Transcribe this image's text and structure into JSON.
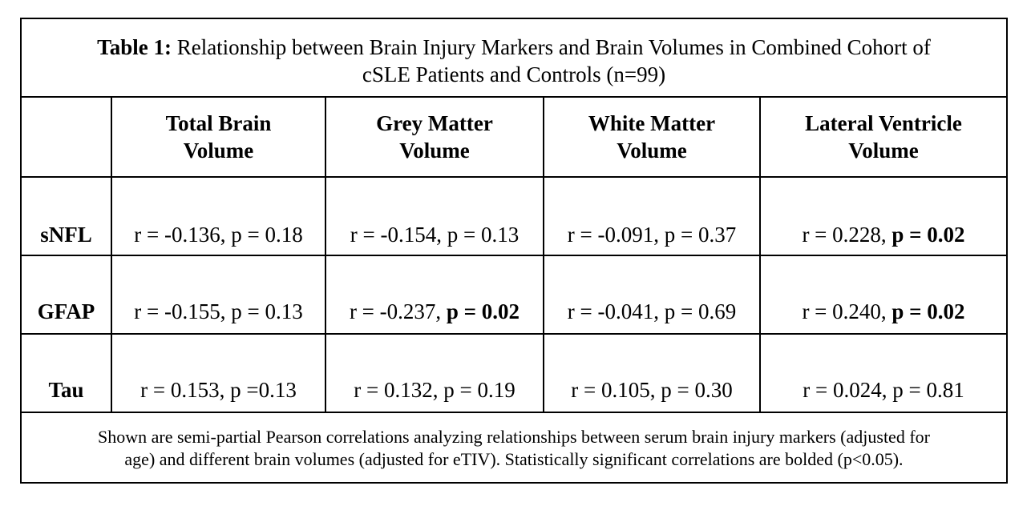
{
  "caption": {
    "label": "Table 1:",
    "text": " Relationship between Brain Injury Markers and Brain Volumes in Combined Cohort of",
    "text2": "cSLE Patients and Controls (n=99)"
  },
  "headers": [
    {
      "line1": "Total Brain",
      "line2": "Volume"
    },
    {
      "line1": "Grey Matter",
      "line2": "Volume"
    },
    {
      "line1": "White Matter",
      "line2": "Volume"
    },
    {
      "line1": "Lateral Ventricle",
      "line2": "Volume"
    }
  ],
  "rows": [
    {
      "label": "sNFL",
      "cells": [
        {
          "r": "r = -0.136, ",
          "p": "p = 0.18",
          "bold": false
        },
        {
          "r": "r = -0.154, ",
          "p": "p = 0.13",
          "bold": false
        },
        {
          "r": "r = -0.091, ",
          "p": "p = 0.37",
          "bold": false
        },
        {
          "r": "r = 0.228, ",
          "p": "p = 0.02",
          "bold": true
        }
      ]
    },
    {
      "label": "GFAP",
      "cells": [
        {
          "r": "r = -0.155, ",
          "p": "p = 0.13",
          "bold": false
        },
        {
          "r": "r = -0.237, ",
          "p": "p = 0.02",
          "bold": true
        },
        {
          "r": "r = -0.041, ",
          "p": "p = 0.69",
          "bold": false
        },
        {
          "r": "r = 0.240, ",
          "p": "p = 0.02",
          "bold": true
        }
      ]
    },
    {
      "label": "Tau",
      "cells": [
        {
          "r": "r = 0.153, ",
          "p": "p =0.13",
          "bold": false
        },
        {
          "r": "r = 0.132, ",
          "p": "p = 0.19",
          "bold": false
        },
        {
          "r": "r = 0.105, ",
          "p": "p = 0.30",
          "bold": false
        },
        {
          "r": "r = 0.024, ",
          "p": "p = 0.81",
          "bold": false
        }
      ]
    }
  ],
  "footnote": {
    "line1": "Shown are semi-partial Pearson correlations analyzing relationships between serum brain injury markers (adjusted for",
    "line2": "age) and different brain volumes (adjusted for eTIV).  Statistically significant correlations are bolded (p<0.05)."
  }
}
